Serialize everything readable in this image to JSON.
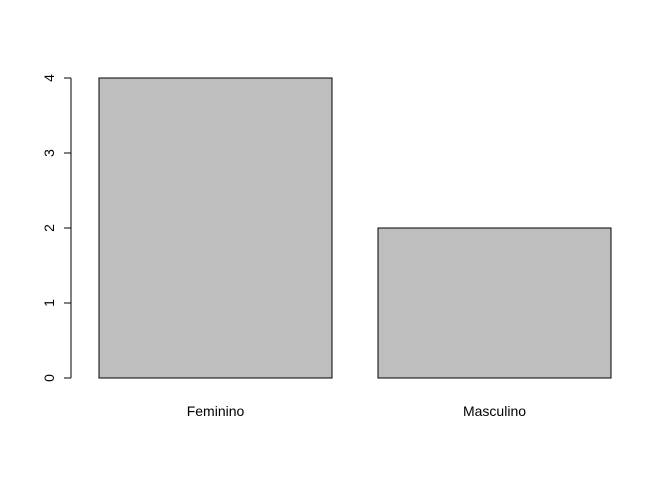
{
  "chart_data": {
    "type": "bar",
    "categories": [
      "Feminino",
      "Masculino"
    ],
    "values": [
      4,
      2
    ],
    "title": "",
    "xlabel": "",
    "ylabel": "",
    "ylim": [
      0,
      4
    ],
    "yticks": [
      0,
      1,
      2,
      3,
      4
    ],
    "bar_color": "#bebebe",
    "grid": false,
    "legend": "none"
  }
}
